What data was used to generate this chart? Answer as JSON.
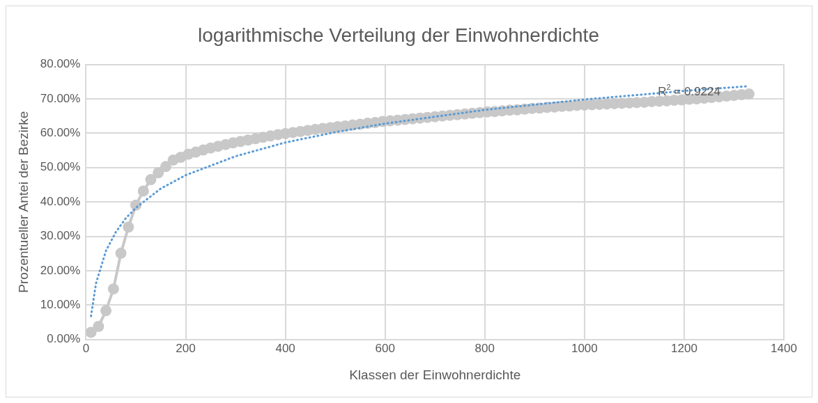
{
  "chart_data": {
    "type": "line",
    "title": "logarithmische Verteilung der Einwohnerdichte",
    "xlabel": "Klassen der Einwohnerdichte",
    "ylabel": "Prozentueller Antei der Bezirke",
    "xlim": [
      0,
      1400
    ],
    "xticks": [
      0,
      200,
      400,
      600,
      800,
      1000,
      1200,
      1400
    ],
    "ylim": [
      0,
      80
    ],
    "yticks": [
      {
        "value": 0,
        "label": "0.00%"
      },
      {
        "value": 10,
        "label": "10.00%"
      },
      {
        "value": 20,
        "label": "20.00%"
      },
      {
        "value": 30,
        "label": "30.00%"
      },
      {
        "value": 40,
        "label": "40.00%"
      },
      {
        "value": 50,
        "label": "50.00%"
      },
      {
        "value": 60,
        "label": "60.00%"
      },
      {
        "value": 70,
        "label": "70.00%"
      },
      {
        "value": 80,
        "label": "80.00%"
      }
    ],
    "grid": true,
    "legend": false,
    "series": [
      {
        "color": "#c8c8c8",
        "marker": "circle",
        "line_style": "solid",
        "x": [
          10,
          25,
          40,
          55,
          70,
          85,
          100,
          115,
          130,
          145,
          160,
          175,
          190,
          205,
          220,
          235,
          250,
          265,
          280,
          295,
          310,
          325,
          340,
          355,
          370,
          385,
          400,
          415,
          430,
          445,
          460,
          475,
          490,
          505,
          520,
          535,
          550,
          565,
          580,
          595,
          610,
          625,
          640,
          655,
          670,
          685,
          700,
          715,
          730,
          745,
          760,
          775,
          790,
          805,
          820,
          835,
          850,
          865,
          880,
          895,
          910,
          925,
          940,
          955,
          970,
          985,
          1000,
          1015,
          1030,
          1045,
          1060,
          1075,
          1090,
          1105,
          1120,
          1135,
          1150,
          1165,
          1180,
          1195,
          1210,
          1225,
          1240,
          1255,
          1270,
          1285,
          1300,
          1315,
          1330
        ],
        "values": [
          2.1,
          3.8,
          8.4,
          14.7,
          25.1,
          32.7,
          39.1,
          43.2,
          46.5,
          48.5,
          50.3,
          52.2,
          53.0,
          53.9,
          54.5,
          55.1,
          55.7,
          56.2,
          56.7,
          57.2,
          57.6,
          58.0,
          58.4,
          58.8,
          59.2,
          59.6,
          59.9,
          60.2,
          60.5,
          60.8,
          61.1,
          61.4,
          61.6,
          61.9,
          62.1,
          62.4,
          62.6,
          62.9,
          63.1,
          63.4,
          63.6,
          63.8,
          64.0,
          64.2,
          64.4,
          64.6,
          64.8,
          65.0,
          65.2,
          65.4,
          65.6,
          65.8,
          66.0,
          66.2,
          66.3,
          66.5,
          66.7,
          66.8,
          67.0,
          67.2,
          67.3,
          67.5,
          67.6,
          67.8,
          67.9,
          68.1,
          68.2,
          68.3,
          68.4,
          68.5,
          68.6,
          68.7,
          68.8,
          68.9,
          69.0,
          69.2,
          69.3,
          69.4,
          69.6,
          69.7,
          69.9,
          70.0,
          70.2,
          70.4,
          70.6,
          70.8,
          71.0,
          71.2,
          71.4
        ]
      },
      {
        "type": "line",
        "color": "#5b9bd5",
        "marker": "none",
        "line_style": "dotted",
        "x": [
          10,
          20,
          40,
          60,
          80,
          100,
          150,
          200,
          300,
          400,
          500,
          600,
          800,
          1000,
          1200,
          1330
        ],
        "values": [
          6.8,
          16.3,
          25.8,
          31.3,
          35.3,
          38.3,
          43.9,
          47.8,
          53.3,
          57.3,
          60.3,
          62.8,
          66.8,
          69.8,
          72.3,
          73.7
        ]
      }
    ],
    "annotations": [
      {
        "text": "R$^{2}$ = 0.9224",
        "x": 1210,
        "y": 72
      }
    ]
  }
}
